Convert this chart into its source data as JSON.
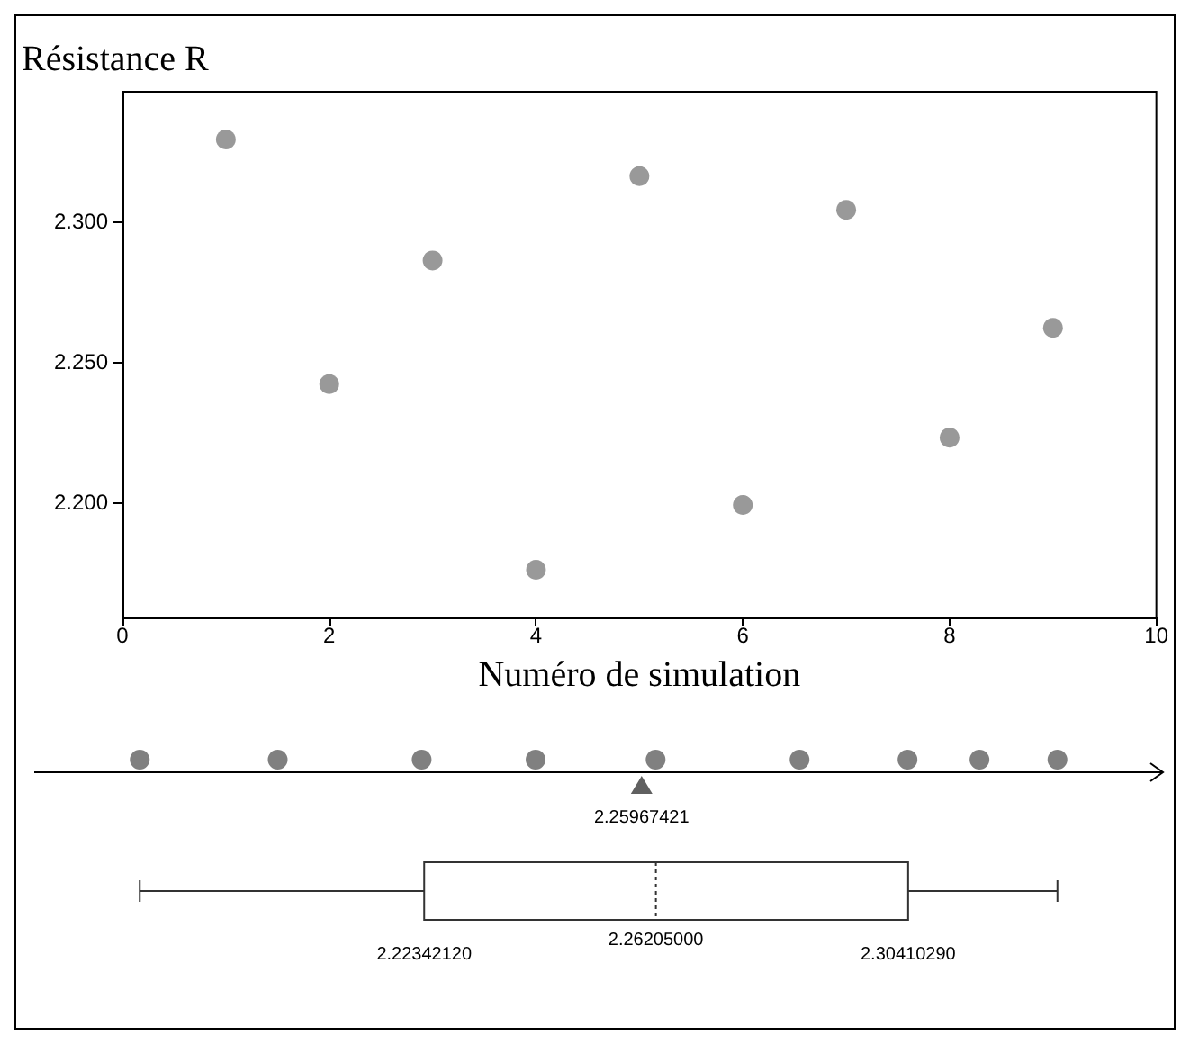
{
  "chart_data": [
    {
      "type": "scatter",
      "ylabel": "Résistance R",
      "xlabel": "Numéro de simulation",
      "x": [
        1,
        2,
        3,
        4,
        5,
        6,
        7,
        8,
        9
      ],
      "series": [
        {
          "color": "#808080",
          "values": [
            2.329,
            2.242,
            2.286,
            2.176,
            2.316,
            2.199,
            2.304,
            2.223,
            2.262
          ]
        }
      ],
      "marker": "circle",
      "xlim": [
        0,
        10
      ],
      "xticks": [
        0,
        2,
        4,
        6,
        8,
        10
      ],
      "ylim": [
        2.159,
        2.346
      ],
      "yticks": [
        {
          "value": 2.2,
          "label": "2.200"
        },
        {
          "value": 2.25,
          "label": "2.250"
        },
        {
          "value": 2.3,
          "label": "2.300"
        }
      ]
    },
    {
      "type": "other",
      "annotations": [
        "2.25967421",
        "2.22342120",
        "2.26205000",
        "2.30410290"
      ]
    }
  ]
}
